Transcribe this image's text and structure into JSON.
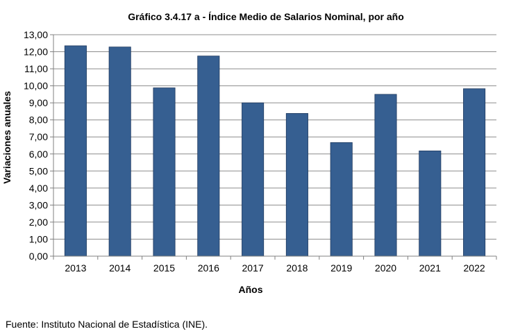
{
  "chart_data": {
    "type": "bar",
    "title": "Gráfico 3.4.17 a - Índice Medio de Salarios Nominal,  por año",
    "xlabel": "Años",
    "ylabel": "Variaciones anuales",
    "categories": [
      "2013",
      "2014",
      "2015",
      "2016",
      "2017",
      "2018",
      "2019",
      "2020",
      "2021",
      "2022"
    ],
    "values": [
      12.35,
      12.28,
      9.88,
      11.75,
      9.0,
      8.38,
      6.67,
      9.5,
      6.18,
      9.83
    ],
    "ylim": [
      0,
      13
    ],
    "ytick_step": 1,
    "ytick_labels": [
      "0,00",
      "1,00",
      "2,00",
      "3,00",
      "4,00",
      "5,00",
      "6,00",
      "7,00",
      "8,00",
      "9,00",
      "10,00",
      "11,00",
      "12,00",
      "13,00"
    ],
    "grid": true,
    "legend": "none",
    "bar_color": "#365F91"
  },
  "source": "Fuente: Instituto Nacional de Estadística (INE)."
}
